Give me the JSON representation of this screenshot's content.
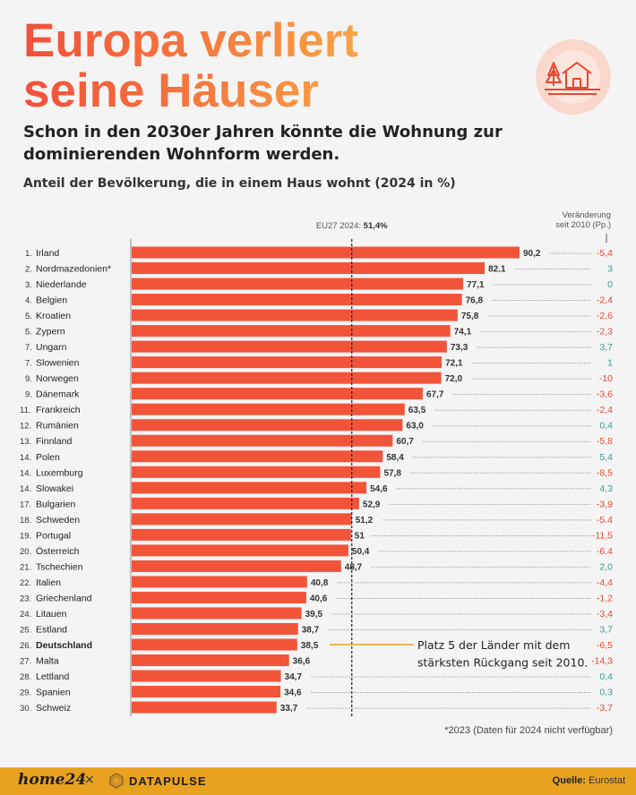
{
  "header": {
    "title_line1": "Europa verliert",
    "title_line2": "seine Häuser",
    "subtitle": "Schon in den 2030er Jahren könnte die Wohnung zur dominierenden Wohnform werden.",
    "icon": "house-with-trees-icon"
  },
  "chart_data": {
    "type": "bar",
    "orientation": "horizontal",
    "title": "Anteil der Bevölkerung, die in einem Haus wohnt (2024 in %)",
    "reference_line": {
      "label": "EU27 2024:",
      "value_label": "51,4%",
      "value": 51.4
    },
    "change_header_line1": "Veränderung",
    "change_header_line2": "seit 2010 (Pp.)",
    "xlim": [
      0,
      100
    ],
    "colors": {
      "bar": "#f2543a",
      "negative": "#e8472f",
      "positive": "#3a9a96",
      "highlight_line": "#e8a220"
    },
    "rows": [
      {
        "rank": "1.",
        "country": "Irland",
        "value": 90.2,
        "label": "90,2",
        "change": "-5,4",
        "change_value": -5.4
      },
      {
        "rank": "2.",
        "country": "Nordmazedonien*",
        "value": 82.1,
        "label": "82.1",
        "change": "3",
        "change_value": 3
      },
      {
        "rank": "3.",
        "country": "Niederlande",
        "value": 77.1,
        "label": "77,1",
        "change": "0",
        "change_value": 0
      },
      {
        "rank": "4.",
        "country": "Belgien",
        "value": 76.8,
        "label": "76,8",
        "change": "-2,4",
        "change_value": -2.4
      },
      {
        "rank": "5.",
        "country": "Kroatien",
        "value": 75.8,
        "label": "75,8",
        "change": "-2,6",
        "change_value": -2.6
      },
      {
        "rank": "5.",
        "country": "Zypern",
        "value": 74.1,
        "label": "74,1",
        "change": "-2,3",
        "change_value": -2.3
      },
      {
        "rank": "7.",
        "country": "Ungarn",
        "value": 73.3,
        "label": "73,3",
        "change": "3,7",
        "change_value": 3.7
      },
      {
        "rank": "7.",
        "country": "Slowenien",
        "value": 72.1,
        "label": "72,1",
        "change": "1",
        "change_value": 1
      },
      {
        "rank": "9.",
        "country": "Norwegen",
        "value": 72.0,
        "label": "72,0",
        "change": "-10",
        "change_value": -10
      },
      {
        "rank": "9.",
        "country": "Dänemark",
        "value": 67.7,
        "label": "67,7",
        "change": "-3,6",
        "change_value": -3.6
      },
      {
        "rank": "11.",
        "country": "Frankreich",
        "value": 63.5,
        "label": "63,5",
        "change": "-2,4",
        "change_value": -2.4
      },
      {
        "rank": "12.",
        "country": "Rumänien",
        "value": 63.0,
        "label": "63,0",
        "change": "0,4",
        "change_value": 0.4
      },
      {
        "rank": "13.",
        "country": "Finnland",
        "value": 60.7,
        "label": "60,7",
        "change": "-5,8",
        "change_value": -5.8
      },
      {
        "rank": "14.",
        "country": "Polen",
        "value": 58.4,
        "label": "58,4",
        "change": "5,4",
        "change_value": 5.4
      },
      {
        "rank": "14.",
        "country": "Luxemburg",
        "value": 57.8,
        "label": "57,8",
        "change": "-8,5",
        "change_value": -8.5
      },
      {
        "rank": "14.",
        "country": "Slowakei",
        "value": 54.6,
        "label": "54,6",
        "change": "4,3",
        "change_value": 4.3
      },
      {
        "rank": "17.",
        "country": "Bulgarien",
        "value": 52.9,
        "label": "52,9",
        "change": "-3,9",
        "change_value": -3.9
      },
      {
        "rank": "18.",
        "country": "Schweden",
        "value": 51.2,
        "label": "51,2",
        "change": "-5.4",
        "change_value": -5.4
      },
      {
        "rank": "19.",
        "country": "Portugal",
        "value": 51,
        "label": "51",
        "change": "-11,5",
        "change_value": -11.5
      },
      {
        "rank": "20.",
        "country": "Österreich",
        "value": 50.4,
        "label": "50,4",
        "change": "-6.4",
        "change_value": -6.4
      },
      {
        "rank": "21.",
        "country": "Tschechien",
        "value": 48.7,
        "label": "48,7",
        "change": "2,0",
        "change_value": 2.0
      },
      {
        "rank": "22.",
        "country": "Italien",
        "value": 40.8,
        "label": "40,8",
        "change": "-4,4",
        "change_value": -4.4
      },
      {
        "rank": "23.",
        "country": "Griechenland",
        "value": 40.6,
        "label": "40,6",
        "change": "-1,2",
        "change_value": -1.2
      },
      {
        "rank": "24.",
        "country": "Litauen",
        "value": 39.5,
        "label": "39,5",
        "change": "-3,4",
        "change_value": -3.4
      },
      {
        "rank": "25.",
        "country": "Estland",
        "value": 38.7,
        "label": "38,7",
        "change": "3,7",
        "change_value": 3.7
      },
      {
        "rank": "26.",
        "country": "Deutschland",
        "value": 38.5,
        "label": "38,5",
        "change": "-6,5",
        "change_value": -6.5,
        "highlight": true
      },
      {
        "rank": "27.",
        "country": "Malta",
        "value": 36.6,
        "label": "36,6",
        "change": "-14,3",
        "change_value": -14.3
      },
      {
        "rank": "28.",
        "country": "Lettland",
        "value": 34.7,
        "label": "34,7",
        "change": "0,4",
        "change_value": 0.4
      },
      {
        "rank": "29.",
        "country": "Spanien",
        "value": 34.6,
        "label": "34,6",
        "change": "0,3",
        "change_value": 0.3
      },
      {
        "rank": "30.",
        "country": "Schweiz",
        "value": 33.7,
        "label": "33,7",
        "change": "-3,7",
        "change_value": -3.7
      }
    ],
    "annotation_line1": "Platz 5 der Länder mit dem",
    "annotation_line2": "stärksten Rückgang seit 2010."
  },
  "footnote": "*2023 (Daten für 2024 nicht verfügbar)",
  "footer": {
    "brand1": "home24",
    "separator": "×",
    "brand2": "DATAPULSE",
    "source_label": "Quelle:",
    "source_value": "Eurostat"
  }
}
